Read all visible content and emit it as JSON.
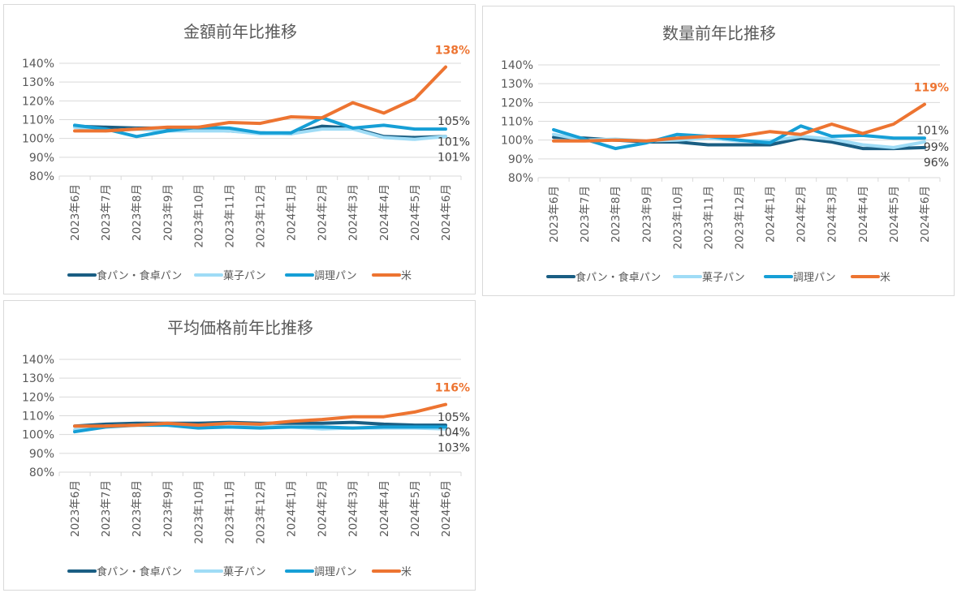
{
  "colors": {
    "食パン・食卓パン": "#1a5e83",
    "菓子パン": "#9fdcf6",
    "調理パン": "#169fd6",
    "米": "#ed7431",
    "grid": "#d9d9d9",
    "text": "#595959"
  },
  "chart_data": [
    {
      "type": "line",
      "title": "金額前年比推移",
      "xlabel": "",
      "ylabel": "",
      "ylim": [
        0.8,
        1.4
      ],
      "yticks": [
        "140%",
        "130%",
        "120%",
        "110%",
        "100%",
        "90%",
        "80%"
      ],
      "ytick_values": [
        1.4,
        1.3,
        1.2,
        1.1,
        1.0,
        0.9,
        0.8
      ],
      "grid": true,
      "legend": "bottom",
      "categories": [
        "2023年6月",
        "2023年7月",
        "2023年8月",
        "2023年9月",
        "2023年10月",
        "2023年11月",
        "2023年12月",
        "2024年1月",
        "2024年2月",
        "2024年3月",
        "2024年4月",
        "2024年5月",
        "2024年6月"
      ],
      "series": [
        {
          "name": "食パン・食卓パン",
          "values": [
            1.065,
            1.06,
            1.055,
            1.055,
            1.05,
            1.04,
            1.03,
            1.025,
            1.065,
            1.055,
            1.01,
            1.005,
            1.01
          ],
          "end_label": "101%",
          "end_label_bold": false
        },
        {
          "name": "菓子パン",
          "values": [
            1.06,
            1.04,
            1.05,
            1.04,
            1.04,
            1.04,
            1.025,
            1.025,
            1.05,
            1.05,
            1.005,
            0.995,
            1.01
          ],
          "end_label": "101%",
          "end_label_bold": false
        },
        {
          "name": "調理パン",
          "values": [
            1.07,
            1.05,
            1.01,
            1.04,
            1.06,
            1.055,
            1.03,
            1.03,
            1.11,
            1.055,
            1.07,
            1.05,
            1.05
          ],
          "end_label": "105%",
          "end_label_bold": false
        },
        {
          "name": "米",
          "values": [
            1.04,
            1.04,
            1.05,
            1.06,
            1.06,
            1.085,
            1.08,
            1.115,
            1.11,
            1.19,
            1.135,
            1.21,
            1.38
          ],
          "end_label": "138%",
          "end_label_bold": true
        }
      ]
    },
    {
      "type": "line",
      "title": "数量前年比推移",
      "xlabel": "",
      "ylabel": "",
      "ylim": [
        0.8,
        1.4
      ],
      "yticks": [
        "140%",
        "130%",
        "120%",
        "110%",
        "100%",
        "90%",
        "80%"
      ],
      "ytick_values": [
        1.4,
        1.3,
        1.2,
        1.1,
        1.0,
        0.9,
        0.8
      ],
      "grid": true,
      "legend": "bottom",
      "categories": [
        "2023年6月",
        "2023年7月",
        "2023年8月",
        "2023年9月",
        "2023年10月",
        "2023年11月",
        "2023年12月",
        "2024年1月",
        "2024年2月",
        "2024年3月",
        "2024年4月",
        "2024年5月",
        "2024年6月"
      ],
      "series": [
        {
          "name": "食パン・食卓パン",
          "values": [
            1.015,
            1.01,
            1.0,
            0.99,
            0.99,
            0.975,
            0.975,
            0.975,
            1.01,
            0.99,
            0.955,
            0.955,
            0.96
          ],
          "end_label": "96%",
          "end_label_bold": false
        },
        {
          "name": "菓子パン",
          "values": [
            1.03,
            1.0,
            1.005,
            0.995,
            1.0,
            1.01,
            0.995,
            0.995,
            1.02,
            1.005,
            0.975,
            0.96,
            0.99
          ],
          "end_label": "99%",
          "end_label_bold": false
        },
        {
          "name": "調理パン",
          "values": [
            1.055,
            1.005,
            0.955,
            0.985,
            1.03,
            1.02,
            1.0,
            0.985,
            1.075,
            1.02,
            1.025,
            1.01,
            1.01
          ],
          "end_label": "101%",
          "end_label_bold": false
        },
        {
          "name": "米",
          "values": [
            0.995,
            0.995,
            1.0,
            0.995,
            1.01,
            1.02,
            1.02,
            1.045,
            1.03,
            1.085,
            1.035,
            1.085,
            1.19
          ],
          "end_label": "119%",
          "end_label_bold": true
        }
      ]
    },
    {
      "type": "line",
      "title": "平均価格前年比推移",
      "xlabel": "",
      "ylabel": "",
      "ylim": [
        0.8,
        1.4
      ],
      "yticks": [
        "140%",
        "130%",
        "120%",
        "110%",
        "100%",
        "90%",
        "80%"
      ],
      "ytick_values": [
        1.4,
        1.3,
        1.2,
        1.1,
        1.0,
        0.9,
        0.8
      ],
      "grid": true,
      "legend": "bottom",
      "categories": [
        "2023年6月",
        "2023年7月",
        "2023年8月",
        "2023年9月",
        "2023年10月",
        "2023年11月",
        "2023年12月",
        "2024年1月",
        "2024年2月",
        "2024年3月",
        "2024年4月",
        "2024年5月",
        "2024年6月"
      ],
      "series": [
        {
          "name": "食パン・食卓パン",
          "values": [
            1.045,
            1.055,
            1.06,
            1.06,
            1.06,
            1.065,
            1.06,
            1.06,
            1.06,
            1.065,
            1.055,
            1.05,
            1.05
          ],
          "end_label": "105%",
          "end_label_bold": false
        },
        {
          "name": "菓子パン",
          "values": [
            1.025,
            1.045,
            1.05,
            1.05,
            1.045,
            1.04,
            1.045,
            1.04,
            1.03,
            1.035,
            1.035,
            1.035,
            1.03
          ],
          "end_label": "103%",
          "end_label_bold": false
        },
        {
          "name": "調理パン",
          "values": [
            1.015,
            1.04,
            1.05,
            1.05,
            1.035,
            1.04,
            1.035,
            1.04,
            1.04,
            1.035,
            1.04,
            1.04,
            1.04
          ],
          "end_label": "104%",
          "end_label_bold": false
        },
        {
          "name": "米",
          "values": [
            1.045,
            1.045,
            1.05,
            1.06,
            1.05,
            1.06,
            1.055,
            1.07,
            1.08,
            1.095,
            1.095,
            1.12,
            1.16
          ],
          "end_label": "116%",
          "end_label_bold": true
        }
      ]
    }
  ]
}
